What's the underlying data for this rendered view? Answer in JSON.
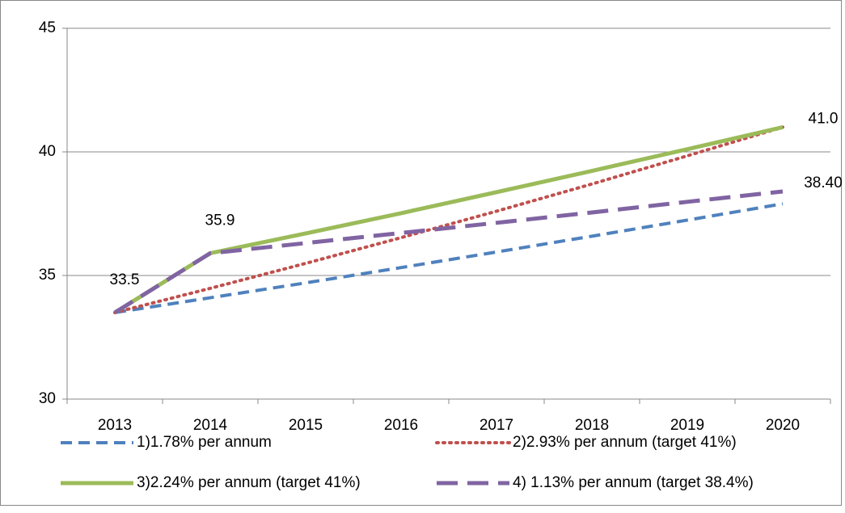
{
  "chart_data": {
    "type": "line",
    "categories": [
      "2013",
      "2014",
      "2015",
      "2016",
      "2017",
      "2018",
      "2019",
      "2020"
    ],
    "series": [
      {
        "name": "1)1.78% per annum",
        "color": "#4f81bd",
        "style": "dashed",
        "values": [
          33.5,
          34.1,
          34.7,
          35.32,
          35.95,
          36.59,
          37.24,
          37.9
        ]
      },
      {
        "name": "2)2.93%  per annum (target 41%)",
        "color": "#c0504d",
        "style": "dotted",
        "values": [
          33.5,
          34.48,
          35.49,
          36.53,
          37.6,
          38.7,
          39.84,
          41.0
        ]
      },
      {
        "name": "3)2.24% per annum (target 41%)",
        "color": "#9bbb59",
        "style": "solid",
        "values": [
          33.5,
          35.9,
          36.7,
          37.52,
          38.37,
          39.23,
          40.11,
          41.0
        ],
        "value_labels": [
          "33.5",
          "35.9",
          null,
          null,
          null,
          null,
          null,
          "41.0"
        ]
      },
      {
        "name": "4) 1.13% per annum (target 38.4%)",
        "color": "#8064a2",
        "style": "longdash",
        "values": [
          33.5,
          35.9,
          36.31,
          36.72,
          37.13,
          37.55,
          37.98,
          38.4
        ],
        "value_labels": [
          null,
          null,
          null,
          null,
          null,
          null,
          null,
          "38.40"
        ]
      }
    ],
    "ylim": [
      30,
      45
    ],
    "yticks": [
      30,
      35,
      40,
      45
    ],
    "grid": true,
    "legend": "bottom"
  }
}
